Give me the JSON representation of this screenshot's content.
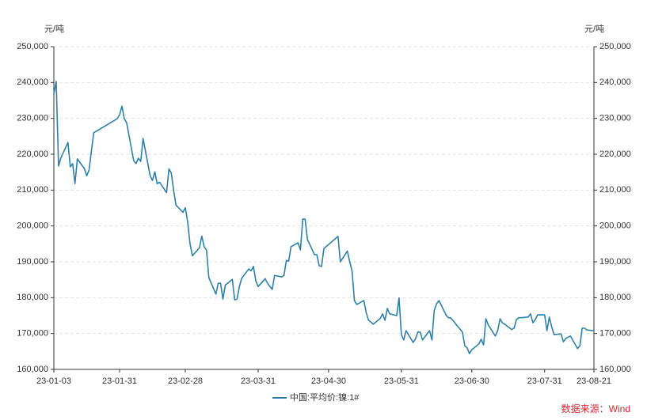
{
  "chart_data": {
    "type": "line",
    "y_unit": "元/吨",
    "source": "数据来源：Wind",
    "x": [
      "23-01-03",
      "23-01-04",
      "23-01-05",
      "23-01-06",
      "23-01-09",
      "23-01-10",
      "23-01-11",
      "23-01-12",
      "23-01-13",
      "23-01-16",
      "23-01-17",
      "23-01-18",
      "23-01-19",
      "23-01-20",
      "23-01-30",
      "23-01-31",
      "23-02-01",
      "23-02-02",
      "23-02-03",
      "23-02-06",
      "23-02-07",
      "23-02-08",
      "23-02-09",
      "23-02-10",
      "23-02-13",
      "23-02-14",
      "23-02-15",
      "23-02-16",
      "23-02-17",
      "23-02-20",
      "23-02-21",
      "23-02-22",
      "23-02-23",
      "23-02-24",
      "23-02-27",
      "23-02-28",
      "23-03-01",
      "23-03-02",
      "23-03-03",
      "23-03-06",
      "23-03-07",
      "23-03-08",
      "23-03-09",
      "23-03-10",
      "23-03-13",
      "23-03-14",
      "23-03-15",
      "23-03-16",
      "23-03-17",
      "23-03-20",
      "23-03-21",
      "23-03-22",
      "23-03-23",
      "23-03-24",
      "23-03-27",
      "23-03-28",
      "23-03-29",
      "23-03-30",
      "23-03-31",
      "23-04-03",
      "23-04-04",
      "23-04-06",
      "23-04-07",
      "23-04-10",
      "23-04-11",
      "23-04-12",
      "23-04-13",
      "23-04-14",
      "23-04-17",
      "23-04-18",
      "23-04-19",
      "23-04-20",
      "23-04-21",
      "23-04-24",
      "23-04-25",
      "23-04-26",
      "23-04-27",
      "23-04-28",
      "23-05-04",
      "23-05-05",
      "23-05-08",
      "23-05-09",
      "23-05-10",
      "23-05-11",
      "23-05-12",
      "23-05-15",
      "23-05-16",
      "23-05-17",
      "23-05-18",
      "23-05-19",
      "23-05-22",
      "23-05-23",
      "23-05-24",
      "23-05-25",
      "23-05-26",
      "23-05-29",
      "23-05-30",
      "23-05-31",
      "23-06-01",
      "23-06-02",
      "23-06-05",
      "23-06-06",
      "23-06-07",
      "23-06-08",
      "23-06-09",
      "23-06-12",
      "23-06-13",
      "23-06-14",
      "23-06-15",
      "23-06-16",
      "23-06-19",
      "23-06-20",
      "23-06-21",
      "23-06-26",
      "23-06-27",
      "23-06-28",
      "23-06-29",
      "23-06-30",
      "23-07-03",
      "23-07-04",
      "23-07-05",
      "23-07-06",
      "23-07-07",
      "23-07-10",
      "23-07-11",
      "23-07-12",
      "23-07-13",
      "23-07-14",
      "23-07-17",
      "23-07-18",
      "23-07-19",
      "23-07-20",
      "23-07-21",
      "23-07-24",
      "23-07-25",
      "23-07-26",
      "23-07-27",
      "23-07-28",
      "23-07-31",
      "23-08-01",
      "23-08-02",
      "23-08-03",
      "23-08-04",
      "23-08-07",
      "23-08-08",
      "23-08-09",
      "23-08-10",
      "23-08-11",
      "23-08-14",
      "23-08-15",
      "23-08-16",
      "23-08-17",
      "23-08-18",
      "23-08-21"
    ],
    "series": [
      {
        "name": "中国:平均价:镍:1#",
        "color": "#2f80a8",
        "axis": "y",
        "values": [
          236800,
          240300,
          216700,
          219000,
          223300,
          216500,
          217400,
          211800,
          218700,
          216000,
          214000,
          215600,
          221000,
          226000,
          229900,
          231000,
          233400,
          229900,
          228800,
          218200,
          217400,
          218900,
          218000,
          224400,
          214000,
          212700,
          215100,
          211800,
          212200,
          209300,
          215900,
          214800,
          210000,
          205800,
          203800,
          205100,
          201000,
          195000,
          191700,
          193900,
          197200,
          194200,
          193300,
          185600,
          181000,
          184000,
          184000,
          179600,
          183500,
          185100,
          179400,
          179600,
          183100,
          185400,
          188000,
          187500,
          188700,
          184700,
          183100,
          185300,
          184000,
          182300,
          186200,
          185800,
          186200,
          190400,
          190200,
          194200,
          195300,
          193300,
          201900,
          201900,
          196200,
          192000,
          192000,
          188900,
          188700,
          193700,
          197100,
          190000,
          193000,
          190000,
          187400,
          179200,
          178100,
          179200,
          175900,
          173700,
          173200,
          172600,
          174200,
          175500,
          173700,
          177000,
          175500,
          175000,
          179900,
          169700,
          168200,
          170800,
          167500,
          168500,
          170400,
          170400,
          168200,
          170800,
          168200,
          176500,
          178300,
          179200,
          175200,
          174400,
          174400,
          170400,
          166600,
          166000,
          164400,
          165500,
          167100,
          168400,
          166800,
          174100,
          172400,
          169300,
          170800,
          174100,
          173000,
          172600,
          171100,
          171500,
          173900,
          174400,
          174400,
          174600,
          175500,
          173000,
          173900,
          175200,
          175200,
          170800,
          174600,
          171900,
          169700,
          169900,
          167700,
          168600,
          169000,
          169300,
          165800,
          166600,
          171500,
          171500,
          171000,
          170800
        ]
      }
    ],
    "xlim": [
      "23-01-03",
      "23-08-21"
    ],
    "xticks": [
      "23-01-03",
      "23-01-31",
      "23-02-28",
      "23-03-31",
      "23-04-30",
      "23-05-31",
      "23-06-30",
      "23-07-31",
      "23-08-21"
    ],
    "ylim": [
      160000,
      250000
    ],
    "yticks": [
      {
        "value": 160000,
        "label": "160,000"
      },
      {
        "value": 170000,
        "label": "170,000"
      },
      {
        "value": 180000,
        "label": "180,000"
      },
      {
        "value": 190000,
        "label": "190,000"
      },
      {
        "value": 200000,
        "label": "200,000"
      },
      {
        "value": 210000,
        "label": "210,000"
      },
      {
        "value": 220000,
        "label": "220,000"
      },
      {
        "value": 230000,
        "label": "230,000"
      },
      {
        "value": 240000,
        "label": "240,000"
      },
      {
        "value": 250000,
        "label": "250,000"
      }
    ],
    "y2lim": [
      160000,
      250000
    ],
    "y2ticks": [
      {
        "value": 160000,
        "label": "160,000"
      },
      {
        "value": 170000,
        "label": "170,000"
      },
      {
        "value": 180000,
        "label": "180,000"
      },
      {
        "value": 190000,
        "label": "190,000"
      },
      {
        "value": 200000,
        "label": "200,000"
      },
      {
        "value": 210000,
        "label": "210,000"
      },
      {
        "value": 220000,
        "label": "220,000"
      },
      {
        "value": 230000,
        "label": "230,000"
      },
      {
        "value": 240000,
        "label": "240,000"
      },
      {
        "value": 250000,
        "label": "250,000"
      }
    ],
    "grid": true,
    "legend": "bottom"
  }
}
